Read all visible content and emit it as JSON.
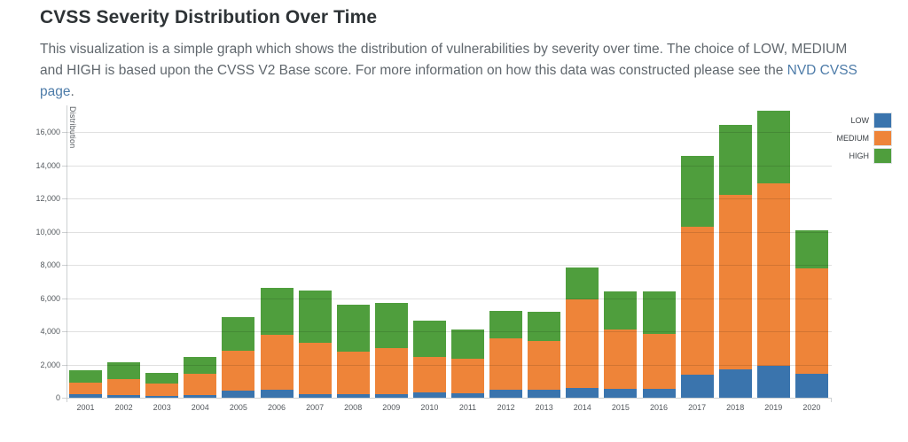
{
  "page": {
    "title": "CVSS Severity Distribution Over Time",
    "description_before_link": "This visualization is a simple graph which shows the distribution of vulnerabilities by severity over time. The choice of LOW, MEDIUM and HIGH is based upon the CVSS V2 Base score. For more information on how this data was constructed please see the ",
    "link_text": "NVD CVSS page",
    "description_after_link": "."
  },
  "colors": {
    "low": "#3A74AD",
    "medium": "#EE8439",
    "high": "#4F9E3D",
    "link": "#4E7CA9",
    "gridline": "#e0e0e0",
    "axis": "#cdd0d2"
  },
  "chart_data": {
    "type": "bar",
    "stacked": true,
    "title": "",
    "xlabel": "",
    "ylabel": "Distribution",
    "grid": true,
    "legend_position": "top-right-outside",
    "categories": [
      "2001",
      "2002",
      "2003",
      "2004",
      "2005",
      "2006",
      "2007",
      "2008",
      "2009",
      "2010",
      "2011",
      "2012",
      "2013",
      "2014",
      "2015",
      "2016",
      "2017",
      "2018",
      "2019",
      "2020"
    ],
    "series": [
      {
        "name": "LOW",
        "color": "#3A74AD",
        "values": [
          210,
          150,
          100,
          180,
          430,
          480,
          220,
          190,
          190,
          300,
          250,
          460,
          460,
          600,
          520,
          550,
          1390,
          1710,
          1940,
          1420
        ]
      },
      {
        "name": "MEDIUM",
        "color": "#EE8439",
        "values": [
          680,
          970,
          730,
          1280,
          2400,
          3290,
          3070,
          2570,
          2780,
          2170,
          2100,
          3090,
          2950,
          5300,
          3570,
          3310,
          8890,
          10500,
          10950,
          6350
        ]
      },
      {
        "name": "HIGH",
        "color": "#4F9E3D",
        "values": [
          750,
          1020,
          680,
          990,
          2000,
          2840,
          3150,
          2860,
          2740,
          2190,
          1760,
          1680,
          1760,
          1960,
          2330,
          2530,
          4300,
          4220,
          4400,
          2310
        ]
      }
    ],
    "totals": [
      1640,
      2140,
      1510,
      2450,
      4830,
      6610,
      6440,
      5620,
      5710,
      4660,
      4110,
      5230,
      5170,
      7860,
      6420,
      6390,
      14580,
      16430,
      17290,
      10080
    ],
    "y_ticks": [
      0,
      2000,
      4000,
      6000,
      8000,
      10000,
      12000,
      14000,
      16000
    ],
    "ylim": [
      0,
      17600
    ]
  }
}
